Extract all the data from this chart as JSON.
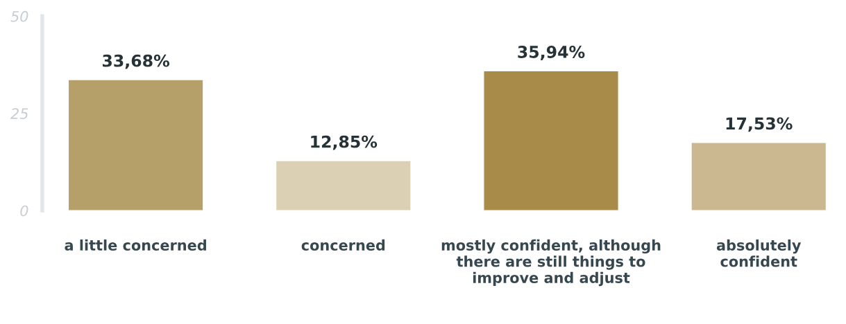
{
  "chart_data": {
    "type": "bar",
    "categories": [
      "a little concerned",
      "concerned",
      "mostly confident, although\nthere are still things to\nimprove and adjust",
      "absolutely\nconfident"
    ],
    "values": [
      33.68,
      12.85,
      35.94,
      17.53
    ],
    "colors": [
      "#b5a06a",
      "#dbd0b4",
      "#a88b48",
      "#cbb891"
    ],
    "value_labels": [
      "33,68%",
      "12,85%",
      "35,94%",
      "17,53%"
    ],
    "ylim": [
      0,
      50
    ],
    "yticks": [
      0,
      25,
      50
    ],
    "grid": false,
    "legend": false
  }
}
